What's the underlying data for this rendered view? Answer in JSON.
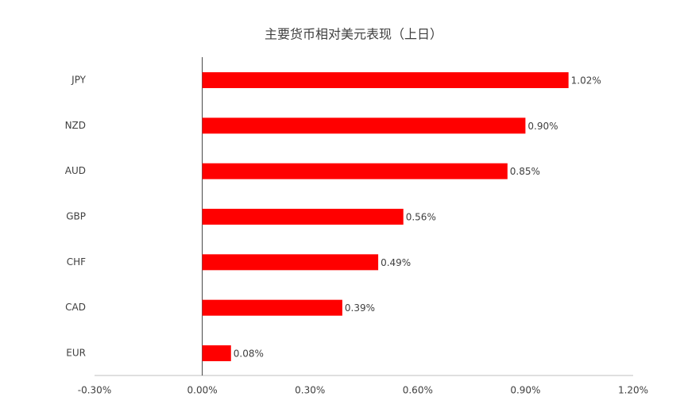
{
  "chart_data": {
    "type": "barh",
    "title": "主要货币相对美元表现（上日）",
    "categories": [
      "JPY",
      "NZD",
      "AUD",
      "GBP",
      "CHF",
      "CAD",
      "EUR"
    ],
    "values": [
      1.02,
      0.9,
      0.85,
      0.56,
      0.49,
      0.39,
      0.08
    ],
    "value_labels": [
      "1.02%",
      "0.90%",
      "0.85%",
      "0.56%",
      "0.49%",
      "0.39%",
      "0.08%"
    ],
    "color": "#ff0000",
    "xlim": [
      -0.3,
      1.2
    ],
    "xticks": [
      {
        "value": -0.3,
        "label": "-0.30%"
      },
      {
        "value": 0,
        "label": "0.00%"
      },
      {
        "value": 0.3,
        "label": "0.30%"
      },
      {
        "value": 0.6,
        "label": "0.60%"
      },
      {
        "value": 0.9,
        "label": "0.90%"
      },
      {
        "value": 1.2,
        "label": "1.20%"
      }
    ]
  }
}
